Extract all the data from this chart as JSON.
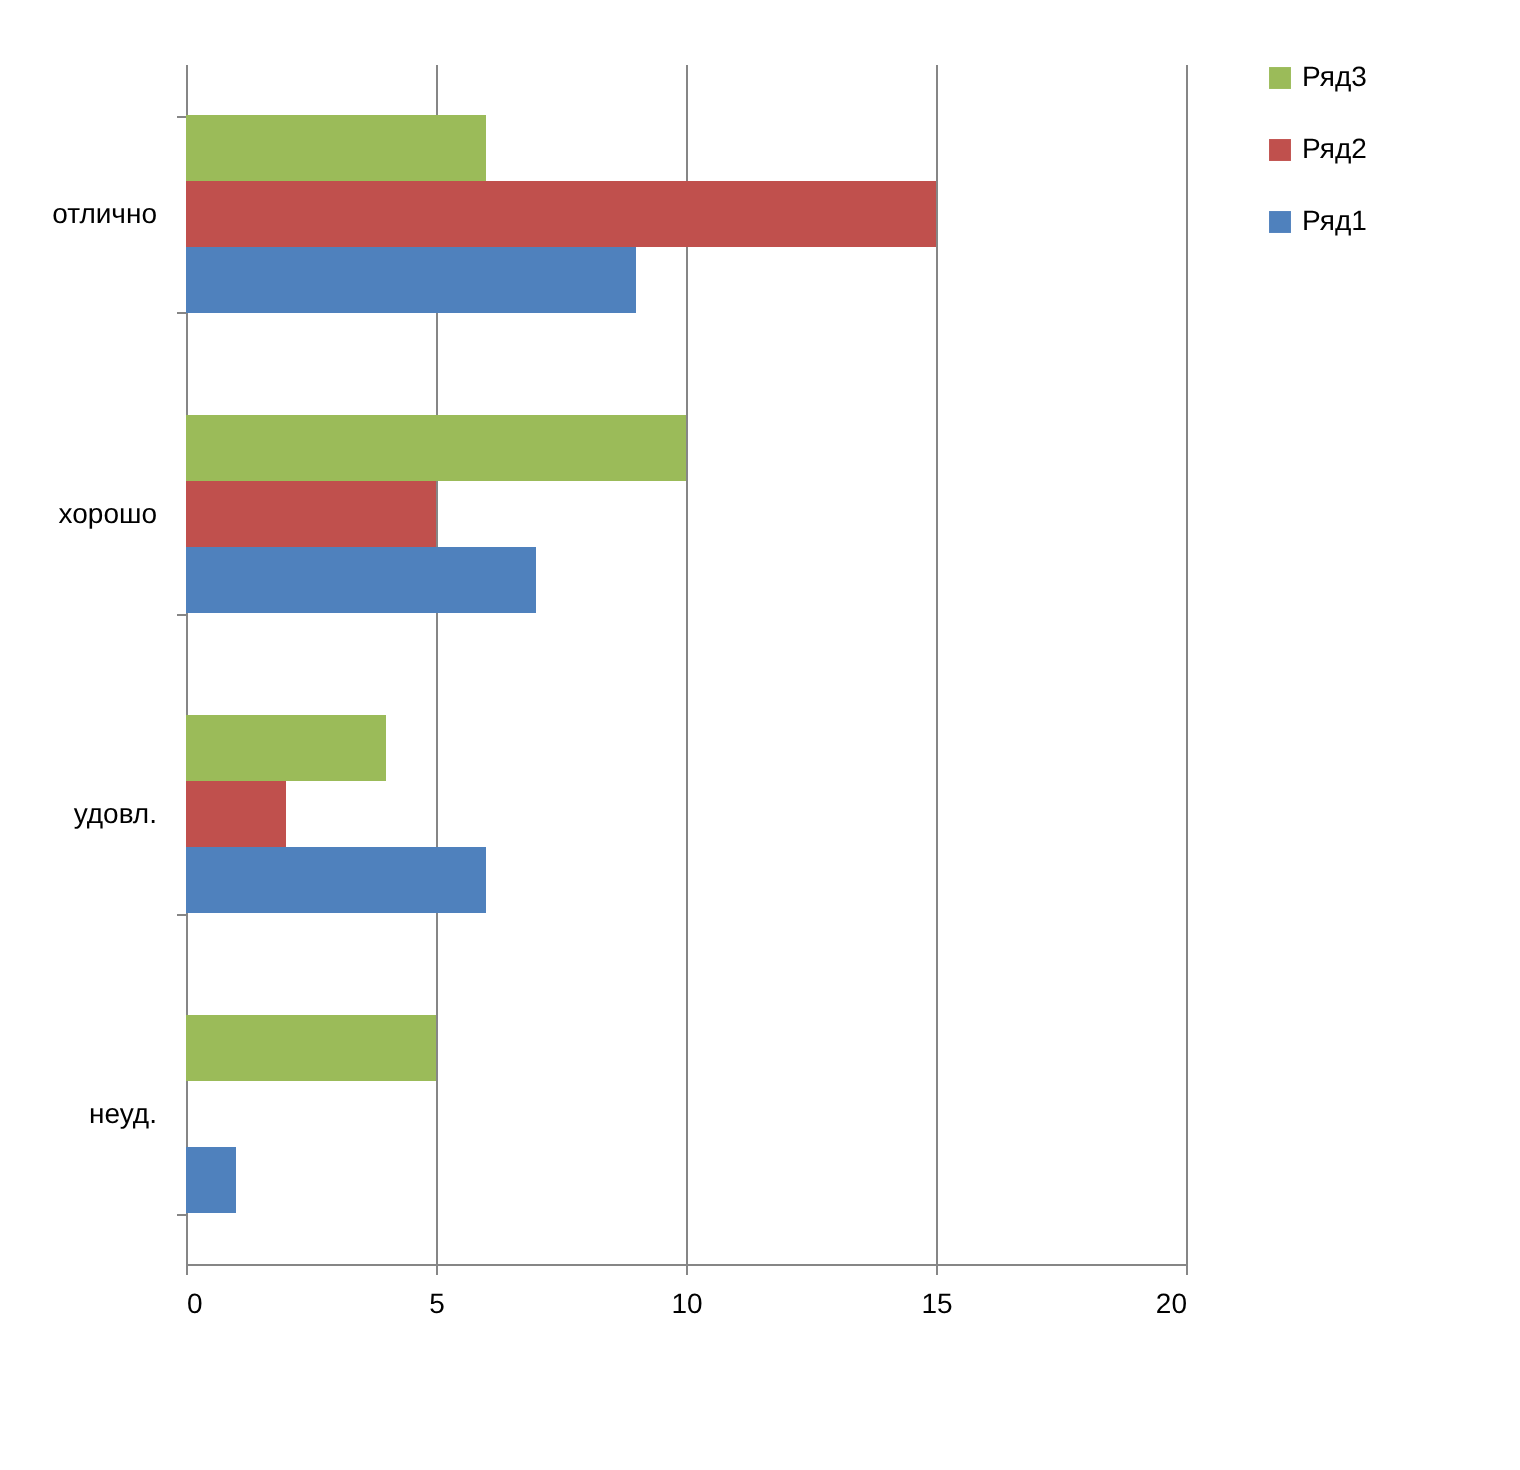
{
  "chart_data": {
    "type": "bar",
    "orientation": "horizontal",
    "categories": [
      "отлично",
      "хорошо",
      "удовл.",
      "неуд."
    ],
    "series": [
      {
        "name": "Ряд1",
        "color": "#4f81bd",
        "values": [
          9,
          7,
          6,
          1
        ]
      },
      {
        "name": "Ряд2",
        "color": "#c0504d",
        "values": [
          15,
          5,
          2,
          0
        ]
      },
      {
        "name": "Ряд3",
        "color": "#9bbb59",
        "values": [
          6,
          10,
          4,
          5
        ]
      }
    ],
    "xlim": [
      0,
      20
    ],
    "xticks": [
      0,
      5,
      10,
      15,
      20
    ],
    "grid": "x",
    "legend": "right"
  }
}
